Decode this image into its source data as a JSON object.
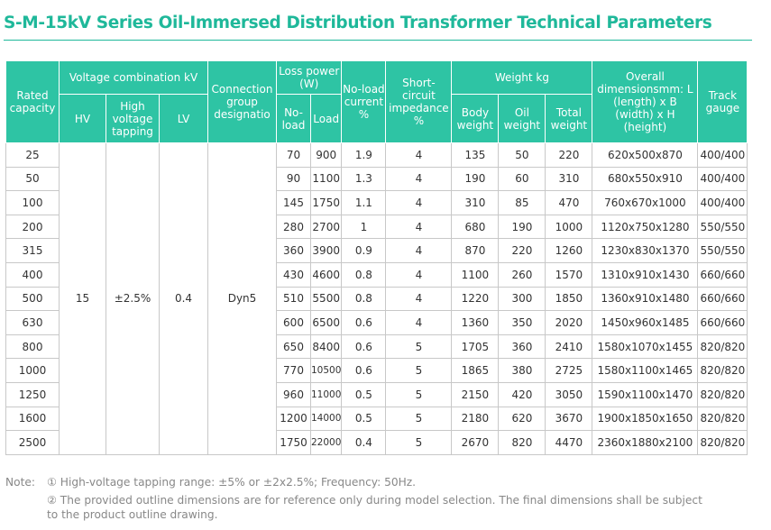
{
  "title": "S-M-15kV Series Oil-Immersed Distribution Transformer Technical Parameters",
  "headers": {
    "rated_capacity": "Rated capacity",
    "voltage_combination": "Voltage combination kV",
    "hv": "HV",
    "high_voltage_tapping": "High voltage tapping",
    "lv": "LV",
    "connection_group": "Connection group designatio",
    "loss_power": "Loss power (W)",
    "no_load": "No-load",
    "load": "Load",
    "no_load_current": "No-load current %",
    "short_circuit": "Short-circuit impedance %",
    "weight": "Weight kg",
    "body_weight": "Body weight",
    "oil_weight": "Oil weight",
    "total_weight": "Total weight",
    "overall_dimensions": "Overall dimensionsmm: L (length) x B (width) x H (height)",
    "track_gauge": "Track gauge"
  },
  "shared": {
    "hv": "15",
    "tapping": "±2.5%",
    "lv": "0.4",
    "connection": "Dyn5"
  },
  "rows": [
    {
      "capacity": "25",
      "no_load": "70",
      "load": "900",
      "current": "1.9",
      "impedance": "4",
      "body": "135",
      "oil": "50",
      "total": "220",
      "dims": "620x500x870",
      "gauge": "400/400"
    },
    {
      "capacity": "50",
      "no_load": "90",
      "load": "1100",
      "current": "1.3",
      "impedance": "4",
      "body": "190",
      "oil": "60",
      "total": "310",
      "dims": "680x550x910",
      "gauge": "400/400"
    },
    {
      "capacity": "100",
      "no_load": "145",
      "load": "1750",
      "current": "1.1",
      "impedance": "4",
      "body": "310",
      "oil": "85",
      "total": "470",
      "dims": "760x670x1000",
      "gauge": "400/400"
    },
    {
      "capacity": "200",
      "no_load": "280",
      "load": "2700",
      "current": "1",
      "impedance": "4",
      "body": "680",
      "oil": "190",
      "total": "1000",
      "dims": "1120x750x1280",
      "gauge": "550/550"
    },
    {
      "capacity": "315",
      "no_load": "360",
      "load": "3900",
      "current": "0.9",
      "impedance": "4",
      "body": "870",
      "oil": "220",
      "total": "1260",
      "dims": "1230x830x1370",
      "gauge": "550/550"
    },
    {
      "capacity": "400",
      "no_load": "430",
      "load": "4600",
      "current": "0.8",
      "impedance": "4",
      "body": "1100",
      "oil": "260",
      "total": "1570",
      "dims": "1310x910x1430",
      "gauge": "660/660"
    },
    {
      "capacity": "500",
      "no_load": "510",
      "load": "5500",
      "current": "0.8",
      "impedance": "4",
      "body": "1220",
      "oil": "300",
      "total": "1850",
      "dims": "1360x910x1480",
      "gauge": "660/660"
    },
    {
      "capacity": "630",
      "no_load": "600",
      "load": "6500",
      "current": "0.6",
      "impedance": "4",
      "body": "1360",
      "oil": "350",
      "total": "2020",
      "dims": "1450x960x1485",
      "gauge": "660/660"
    },
    {
      "capacity": "800",
      "no_load": "650",
      "load": "8400",
      "current": "0.6",
      "impedance": "5",
      "body": "1705",
      "oil": "360",
      "total": "2410",
      "dims": "1580x1070x1455",
      "gauge": "820/820"
    },
    {
      "capacity": "1000",
      "no_load": "770",
      "load": "10500",
      "current": "0.6",
      "impedance": "5",
      "body": "1865",
      "oil": "380",
      "total": "2725",
      "dims": "1580x1100x1465",
      "gauge": "820/820"
    },
    {
      "capacity": "1250",
      "no_load": "960",
      "load": "11000",
      "current": "0.5",
      "impedance": "5",
      "body": "2150",
      "oil": "420",
      "total": "3050",
      "dims": "1590x1100x1470",
      "gauge": "820/820"
    },
    {
      "capacity": "1600",
      "no_load": "1200",
      "load": "14000",
      "current": "0.5",
      "impedance": "5",
      "body": "2180",
      "oil": "620",
      "total": "3670",
      "dims": "1900x1850x1650",
      "gauge": "820/820"
    },
    {
      "capacity": "2500",
      "no_load": "1750",
      "load": "22000",
      "current": "0.4",
      "impedance": "5",
      "body": "2670",
      "oil": "820",
      "total": "4470",
      "dims": "2360x1880x2100",
      "gauge": "820/820"
    }
  ],
  "notes": {
    "label": "Note:",
    "note1": "① High-voltage tapping range: ±5% or ±2x2.5%; Frequency: 50Hz.",
    "note2": "② The provided outline dimensions are for reference only during model selection. The final dimensions shall be subject to the product outline drawing."
  },
  "colors": {
    "accent": "#1fb89a",
    "header_bg": "#2ec4a4"
  }
}
